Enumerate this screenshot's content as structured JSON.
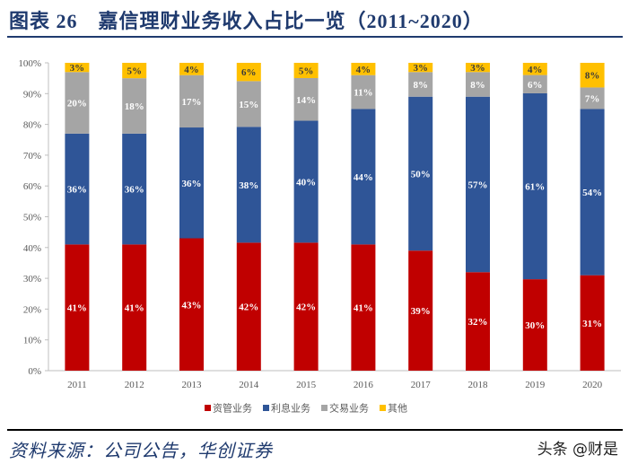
{
  "title": "图表 26　嘉信理财业务收入占比一览（2011~2020）",
  "source": "资料来源：公司公告，华创证券",
  "watermark": "头条 @财是",
  "chart_data": {
    "type": "bar",
    "stacked": true,
    "percent_stacked": true,
    "categories": [
      "2011",
      "2012",
      "2013",
      "2014",
      "2015",
      "2016",
      "2017",
      "2018",
      "2019",
      "2020"
    ],
    "series": [
      {
        "name": "资管业务",
        "color": "#c00000",
        "values": [
          41,
          41,
          43,
          42,
          42,
          41,
          39,
          32,
          30,
          31
        ]
      },
      {
        "name": "利息业务",
        "color": "#2f5597",
        "values": [
          36,
          36,
          36,
          38,
          40,
          44,
          50,
          57,
          61,
          54
        ]
      },
      {
        "name": "交易业务",
        "color": "#a5a5a5",
        "values": [
          20,
          18,
          17,
          15,
          14,
          11,
          8,
          8,
          6,
          7
        ]
      },
      {
        "name": "其他",
        "color": "#ffc000",
        "values": [
          3,
          5,
          4,
          6,
          5,
          4,
          3,
          3,
          4,
          8
        ]
      }
    ],
    "ylim": [
      0,
      100
    ],
    "yticks": [
      "0%",
      "10%",
      "20%",
      "30%",
      "40%",
      "50%",
      "60%",
      "70%",
      "80%",
      "90%",
      "100%"
    ],
    "data_labels": true,
    "grid": false,
    "legend_position": "bottom"
  }
}
